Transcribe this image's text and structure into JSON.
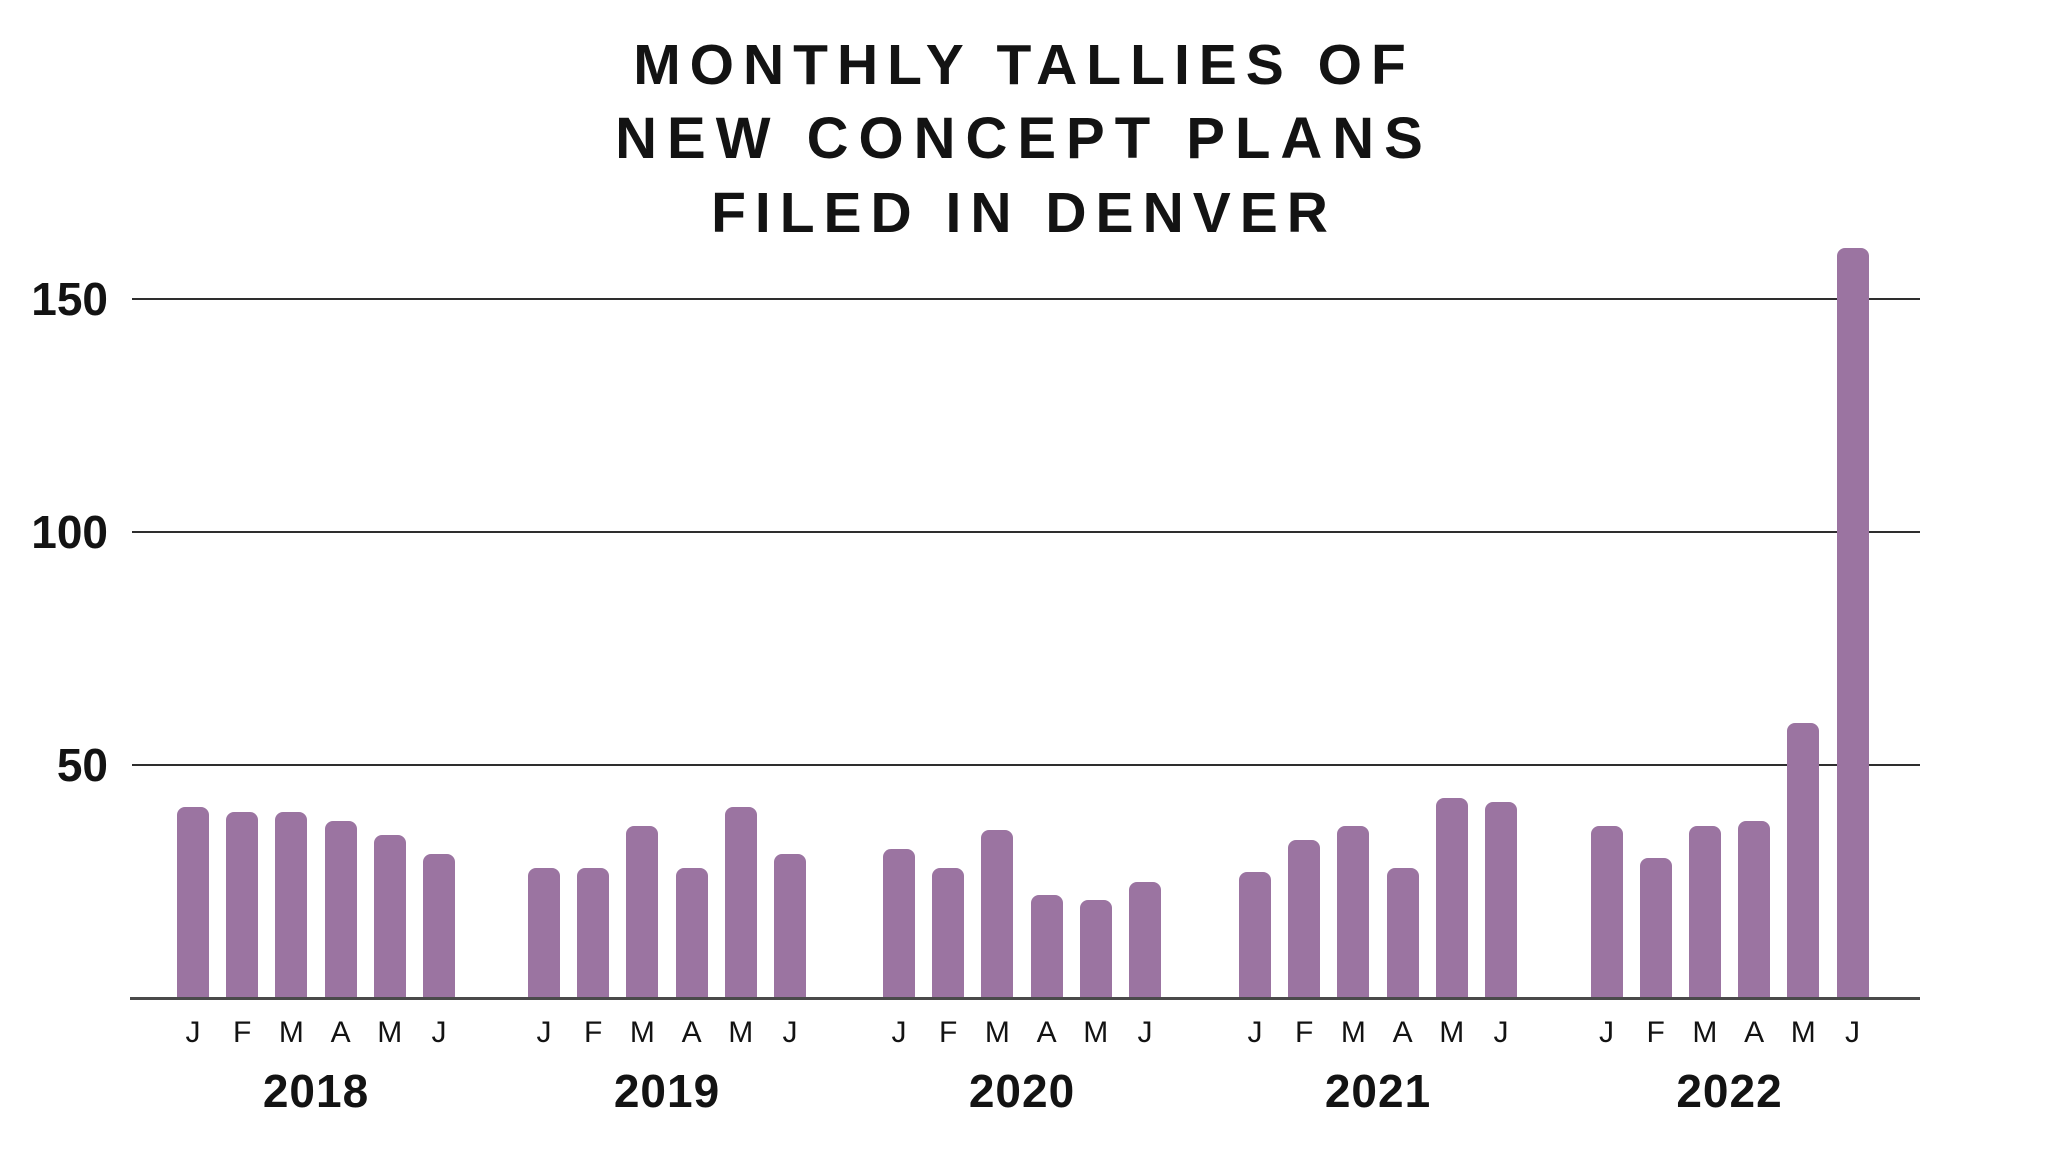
{
  "title": {
    "line1": "MONTHLY TALLIES OF",
    "line2": "NEW CONCEPT PLANS",
    "line3": "FILED IN DENVER"
  },
  "chart_data": {
    "type": "bar",
    "title": "MONTHLY TALLIES OF NEW CONCEPT PLANS FILED IN DENVER",
    "categories_within_group": [
      "J",
      "F",
      "M",
      "A",
      "M",
      "J"
    ],
    "groups": [
      {
        "label": "2018",
        "values": [
          41,
          40,
          40,
          38,
          35,
          31
        ]
      },
      {
        "label": "2019",
        "values": [
          28,
          28,
          37,
          28,
          41,
          31
        ]
      },
      {
        "label": "2020",
        "values": [
          32,
          28,
          36,
          22,
          21,
          25
        ]
      },
      {
        "label": "2021",
        "values": [
          27,
          34,
          37,
          28,
          43,
          42
        ]
      },
      {
        "label": "2022",
        "values": [
          37,
          30,
          37,
          38,
          59,
          161
        ]
      }
    ],
    "y_ticks": [
      50,
      100,
      150
    ],
    "ylim": [
      0,
      170
    ],
    "grid": true,
    "legend": false,
    "xlabel": "",
    "ylabel": ""
  },
  "colors": {
    "bar": "#9b74a1",
    "gridline": "#2e2e2e",
    "baseline": "#4a4a4a",
    "text": "#131313",
    "background": "#ffffff"
  }
}
